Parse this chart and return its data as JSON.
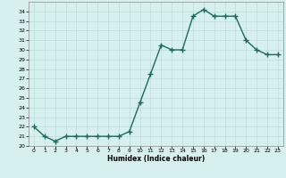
{
  "x": [
    0,
    1,
    2,
    3,
    4,
    5,
    6,
    7,
    8,
    9,
    10,
    11,
    12,
    13,
    14,
    15,
    16,
    17,
    18,
    19,
    20,
    21,
    22,
    23
  ],
  "y": [
    22.0,
    21.0,
    20.5,
    21.0,
    21.0,
    21.0,
    21.0,
    21.0,
    21.0,
    21.5,
    24.5,
    27.5,
    30.5,
    30.0,
    30.0,
    33.5,
    34.2,
    33.5,
    33.5,
    33.5,
    31.0,
    30.0,
    29.5,
    29.5
  ],
  "xlabel": "Humidex (Indice chaleur)",
  "xlim": [
    -0.5,
    23.5
  ],
  "ylim": [
    20,
    35
  ],
  "yticks": [
    20,
    21,
    22,
    23,
    24,
    25,
    26,
    27,
    28,
    29,
    30,
    31,
    32,
    33,
    34
  ],
  "xticks": [
    0,
    1,
    2,
    3,
    4,
    5,
    6,
    7,
    8,
    9,
    10,
    11,
    12,
    13,
    14,
    15,
    16,
    17,
    18,
    19,
    20,
    21,
    22,
    23
  ],
  "line_color": "#1a6b5a",
  "bg_color": "#d6f0f0",
  "grid_color": "#c0d8d8",
  "marker": "+",
  "marker_size": 4,
  "line_width": 1.0
}
